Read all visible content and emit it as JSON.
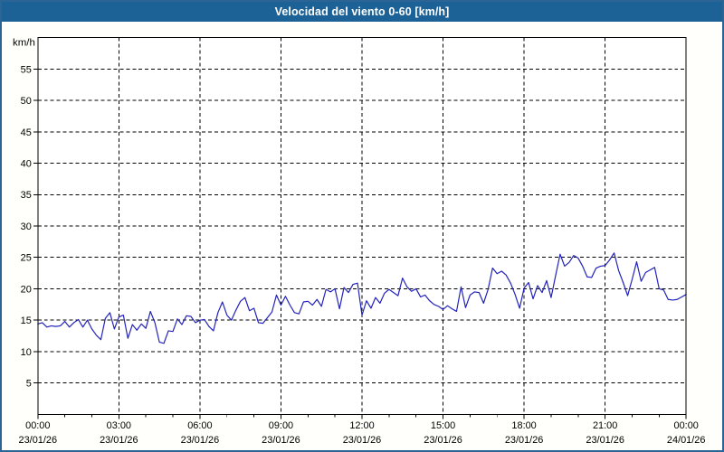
{
  "window": {
    "title": "Velocidad del viento 0-60 [km/h]"
  },
  "colors": {
    "titlebar_bg": "#1d6296",
    "titlebar_text": "#ffffff",
    "window_border": "#2c6496",
    "canvas_bg": "#fffffb",
    "plot_bg": "#ffffff",
    "grid": "#000000",
    "axis": "#000000",
    "line": "#2222bb"
  },
  "chart_data": {
    "type": "line",
    "title": "Velocidad del viento 0-60 [km/h]",
    "ylabel": "km/h",
    "ylim": [
      0,
      60
    ],
    "ytick_min": 5,
    "ytick_max": 55,
    "ytick_step": 5,
    "grid": "dashed",
    "legend": "none",
    "x_start_time": "00:00",
    "interval_minutes": 10,
    "x_major_ticks": [
      {
        "time": "00:00",
        "date": "23/01/26"
      },
      {
        "time": "03:00",
        "date": "23/01/26"
      },
      {
        "time": "06:00",
        "date": "23/01/26"
      },
      {
        "time": "09:00",
        "date": "23/01/26"
      },
      {
        "time": "12:00",
        "date": "23/01/26"
      },
      {
        "time": "15:00",
        "date": "23/01/26"
      },
      {
        "time": "18:00",
        "date": "23/01/26"
      },
      {
        "time": "21:00",
        "date": "23/01/26"
      },
      {
        "time": "00:00",
        "date": "24/01/26"
      }
    ],
    "x_minor_ticks_per_major": 3,
    "series": [
      {
        "name": "wind-speed",
        "unit": "km/h",
        "values": [
          14.4,
          14.6,
          13.9,
          14.1,
          14.0,
          14.1,
          14.8,
          13.9,
          14.6,
          15.1,
          13.9,
          15.0,
          13.6,
          12.6,
          11.9,
          15.3,
          16.2,
          13.6,
          15.5,
          15.8,
          12.1,
          14.3,
          13.4,
          14.4,
          13.7,
          16.4,
          14.6,
          11.5,
          11.3,
          13.3,
          13.2,
          15.2,
          14.3,
          15.7,
          15.6,
          14.6,
          15.0,
          15.1,
          14.0,
          13.3,
          16.2,
          17.9,
          15.8,
          15.0,
          16.6,
          18.0,
          18.6,
          16.5,
          16.9,
          14.6,
          14.5,
          15.4,
          16.3,
          19.0,
          17.4,
          18.8,
          17.4,
          16.2,
          16.0,
          17.9,
          18.0,
          17.4,
          18.3,
          17.2,
          19.9,
          19.5,
          20.0,
          16.8,
          20.2,
          19.4,
          20.7,
          20.9,
          15.8,
          18.1,
          16.9,
          18.6,
          17.7,
          19.3,
          19.9,
          19.4,
          18.9,
          21.7,
          20.3,
          19.6,
          20.0,
          18.7,
          19.0,
          18.1,
          17.5,
          17.2,
          16.7,
          17.3,
          16.8,
          16.4,
          20.3,
          17.0,
          19.0,
          19.5,
          19.4,
          17.7,
          19.9,
          23.3,
          22.4,
          22.8,
          22.2,
          20.9,
          19.1,
          16.9,
          20.1,
          21.0,
          18.4,
          20.5,
          19.4,
          21.3,
          18.6,
          22.1,
          25.5,
          23.6,
          24.2,
          25.3,
          24.9,
          23.6,
          21.9,
          21.8,
          23.3,
          23.6,
          23.7,
          24.6,
          25.7,
          22.9,
          21.0,
          18.9,
          21.5,
          24.3,
          21.2,
          22.6,
          23.0,
          23.4,
          20.0,
          19.8,
          18.3,
          18.2,
          18.3,
          18.7,
          19.1
        ]
      }
    ]
  }
}
